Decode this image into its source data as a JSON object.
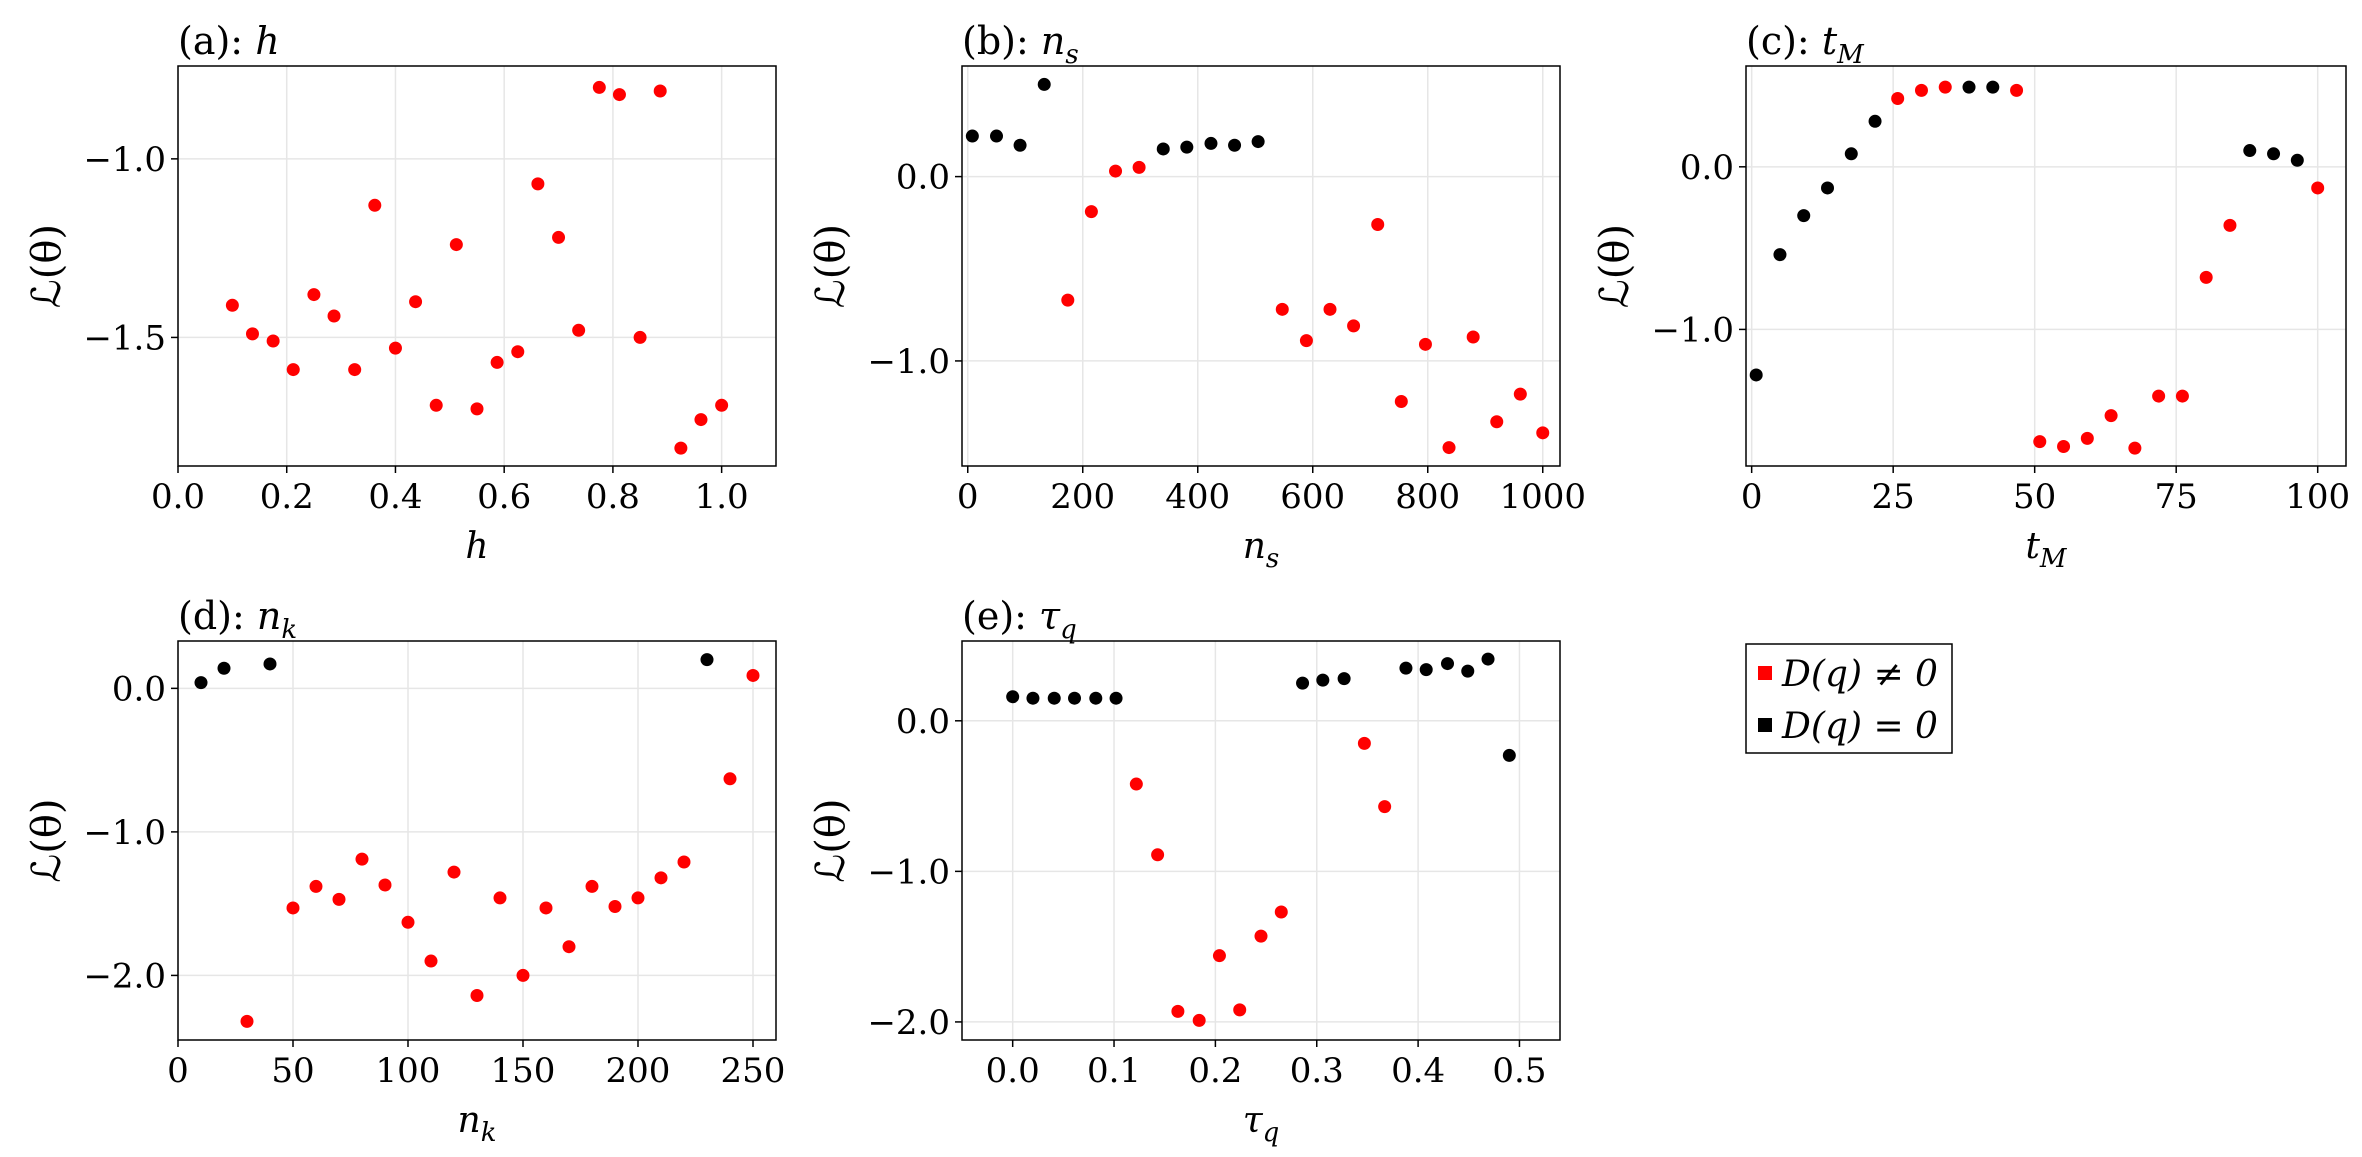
{
  "colors": {
    "nonzero": "#ff0000",
    "zero": "#000000",
    "grid": "#e6e6e6",
    "frame": "#000000"
  },
  "legend": {
    "placement": "right of bottom row",
    "entries": [
      {
        "label": "D(q) ≠ 0",
        "color": "#ff0000"
      },
      {
        "label": "D(q) = 0",
        "color": "#000000"
      }
    ]
  },
  "chart_data": [
    {
      "type": "scatter",
      "title": "(a): h",
      "xlabel": "h",
      "ylabel": "ℒ(θ)",
      "xlim": [
        0.0,
        1.1
      ],
      "ylim": [
        -1.86,
        -0.74
      ],
      "xticks": [
        0.0,
        0.2,
        0.4,
        0.6,
        0.8,
        1.0
      ],
      "xtick_labels": [
        "0.0",
        "0.2",
        "0.4",
        "0.6",
        "0.8",
        "1.0"
      ],
      "yticks": [
        -1.0,
        -1.5
      ],
      "ytick_labels": [
        "−1.0",
        "−1.5"
      ],
      "grid": true,
      "series": [
        {
          "name": "D(q) ≠ 0",
          "color": "#ff0000",
          "points": [
            [
              0.1,
              -1.41
            ],
            [
              0.137,
              -1.49
            ],
            [
              0.175,
              -1.51
            ],
            [
              0.212,
              -1.59
            ],
            [
              0.25,
              -1.38
            ],
            [
              0.287,
              -1.44
            ],
            [
              0.325,
              -1.59
            ],
            [
              0.362,
              -1.13
            ],
            [
              0.4,
              -1.53
            ],
            [
              0.437,
              -1.4
            ],
            [
              0.475,
              -1.69
            ],
            [
              0.512,
              -1.24
            ],
            [
              0.55,
              -1.7
            ],
            [
              0.587,
              -1.57
            ],
            [
              0.625,
              -1.54
            ],
            [
              0.662,
              -1.07
            ],
            [
              0.7,
              -1.22
            ],
            [
              0.737,
              -1.48
            ],
            [
              0.775,
              -0.8
            ],
            [
              0.812,
              -0.82
            ],
            [
              0.85,
              -1.5
            ],
            [
              0.887,
              -0.81
            ],
            [
              0.925,
              -1.81
            ],
            [
              0.962,
              -1.73
            ],
            [
              1.0,
              -1.69
            ]
          ]
        }
      ]
    },
    {
      "type": "scatter",
      "title": "(b): n_s",
      "xlabel": "n_s",
      "ylabel": "ℒ(θ)",
      "xlim": [
        -10,
        1030
      ],
      "ylim": [
        -1.57,
        0.6
      ],
      "xticks": [
        0,
        200,
        400,
        600,
        800,
        1000
      ],
      "xtick_labels": [
        "0",
        "200",
        "400",
        "600",
        "800",
        "1000"
      ],
      "yticks": [
        0.0,
        -1.0
      ],
      "ytick_labels": [
        "0.0",
        "−1.0"
      ],
      "grid": true,
      "series": [
        {
          "name": "D(q) ≠ 0",
          "color": "#ff0000",
          "points": [
            [
              174,
              -0.67
            ],
            [
              215,
              -0.19
            ],
            [
              257,
              0.03
            ],
            [
              298,
              0.05
            ],
            [
              547,
              -0.72
            ],
            [
              589,
              -0.89
            ],
            [
              630,
              -0.72
            ],
            [
              671,
              -0.81
            ],
            [
              713,
              -0.26
            ],
            [
              754,
              -1.22
            ],
            [
              796,
              -0.91
            ],
            [
              837,
              -1.47
            ],
            [
              879,
              -0.87
            ],
            [
              920,
              -1.33
            ],
            [
              961,
              -1.18
            ],
            [
              1000,
              -1.39
            ]
          ]
        },
        {
          "name": "D(q) = 0",
          "color": "#000000",
          "points": [
            [
              8,
              0.22
            ],
            [
              50,
              0.22
            ],
            [
              91,
              0.17
            ],
            [
              133,
              0.5
            ],
            [
              340,
              0.15
            ],
            [
              381,
              0.16
            ],
            [
              423,
              0.18
            ],
            [
              464,
              0.17
            ],
            [
              505,
              0.19
            ]
          ]
        }
      ]
    },
    {
      "type": "scatter",
      "title": "(c): t_M",
      "xlabel": "t_M",
      "ylabel": "ℒ(θ)",
      "xlim": [
        -1,
        105
      ],
      "ylim": [
        -1.84,
        0.62
      ],
      "xticks": [
        0,
        25,
        50,
        75,
        100
      ],
      "xtick_labels": [
        "0",
        "25",
        "50",
        "75",
        "100"
      ],
      "yticks": [
        0.0,
        -1.0
      ],
      "ytick_labels": [
        "0.0",
        "−1.0"
      ],
      "grid": true,
      "series": [
        {
          "name": "D(q) ≠ 0",
          "color": "#ff0000",
          "points": [
            [
              25.8,
              0.42
            ],
            [
              30,
              0.47
            ],
            [
              34.2,
              0.49
            ],
            [
              46.8,
              0.47
            ],
            [
              50.9,
              -1.69
            ],
            [
              55.1,
              -1.72
            ],
            [
              59.3,
              -1.67
            ],
            [
              63.5,
              -1.53
            ],
            [
              67.7,
              -1.73
            ],
            [
              71.9,
              -1.41
            ],
            [
              76.1,
              -1.41
            ],
            [
              80.3,
              -0.68
            ],
            [
              84.5,
              -0.36
            ],
            [
              100,
              -0.13
            ]
          ]
        },
        {
          "name": "D(q) = 0",
          "color": "#000000",
          "points": [
            [
              0.8,
              -1.28
            ],
            [
              5,
              -0.54
            ],
            [
              9.2,
              -0.3
            ],
            [
              13.4,
              -0.13
            ],
            [
              17.6,
              0.08
            ],
            [
              21.8,
              0.28
            ],
            [
              38.4,
              0.49
            ],
            [
              42.6,
              0.49
            ],
            [
              88,
              0.1
            ],
            [
              92.2,
              0.08
            ],
            [
              96.4,
              0.04
            ]
          ]
        }
      ]
    },
    {
      "type": "scatter",
      "title": "(d): n_k",
      "xlabel": "n_k",
      "ylabel": "ℒ(θ)",
      "xlim": [
        0,
        260
      ],
      "ylim": [
        -2.45,
        0.33
      ],
      "xticks": [
        0,
        50,
        100,
        150,
        200,
        250
      ],
      "xtick_labels": [
        "0",
        "50",
        "100",
        "150",
        "200",
        "250"
      ],
      "yticks": [
        0.0,
        -1.0,
        -2.0
      ],
      "ytick_labels": [
        "0.0",
        "−1.0",
        "−2.0"
      ],
      "grid": true,
      "series": [
        {
          "name": "D(q) ≠ 0",
          "color": "#ff0000",
          "points": [
            [
              30,
              -2.32
            ],
            [
              50,
              -1.53
            ],
            [
              60,
              -1.38
            ],
            [
              70,
              -1.47
            ],
            [
              80,
              -1.19
            ],
            [
              90,
              -1.37
            ],
            [
              100,
              -1.63
            ],
            [
              110,
              -1.9
            ],
            [
              120,
              -1.28
            ],
            [
              130,
              -2.14
            ],
            [
              140,
              -1.46
            ],
            [
              150,
              -2.0
            ],
            [
              160,
              -1.53
            ],
            [
              170,
              -1.8
            ],
            [
              180,
              -1.38
            ],
            [
              190,
              -1.52
            ],
            [
              200,
              -1.46
            ],
            [
              210,
              -1.32
            ],
            [
              220,
              -1.21
            ],
            [
              240,
              -0.63
            ],
            [
              250,
              0.09
            ]
          ]
        },
        {
          "name": "D(q) = 0",
          "color": "#000000",
          "points": [
            [
              10,
              0.04
            ],
            [
              20,
              0.14
            ],
            [
              40,
              0.17
            ],
            [
              230,
              0.2
            ]
          ]
        }
      ]
    },
    {
      "type": "scatter",
      "title": "(e): τ_q",
      "xlabel": "τ_q",
      "ylabel": "ℒ(θ)",
      "xlim": [
        -0.05,
        0.54
      ],
      "ylim": [
        -2.12,
        0.53
      ],
      "xticks": [
        0.0,
        0.1,
        0.2,
        0.3,
        0.4,
        0.5
      ],
      "xtick_labels": [
        "0.0",
        "0.1",
        "0.2",
        "0.3",
        "0.4",
        "0.5"
      ],
      "yticks": [
        0.0,
        -1.0,
        -2.0
      ],
      "ytick_labels": [
        "0.0",
        "−1.0",
        "−2.0"
      ],
      "grid": true,
      "series": [
        {
          "name": "D(q) ≠ 0",
          "color": "#ff0000",
          "points": [
            [
              0.122,
              -0.42
            ],
            [
              0.143,
              -0.89
            ],
            [
              0.163,
              -1.93
            ],
            [
              0.184,
              -1.99
            ],
            [
              0.204,
              -1.56
            ],
            [
              0.224,
              -1.92
            ],
            [
              0.245,
              -1.43
            ],
            [
              0.265,
              -1.27
            ],
            [
              0.347,
              -0.15
            ],
            [
              0.367,
              -0.57
            ]
          ]
        },
        {
          "name": "D(q) = 0",
          "color": "#000000",
          "points": [
            [
              0.0,
              0.16
            ],
            [
              0.02,
              0.15
            ],
            [
              0.041,
              0.15
            ],
            [
              0.061,
              0.15
            ],
            [
              0.082,
              0.15
            ],
            [
              0.102,
              0.15
            ],
            [
              0.286,
              0.25
            ],
            [
              0.306,
              0.27
            ],
            [
              0.327,
              0.28
            ],
            [
              0.388,
              0.35
            ],
            [
              0.408,
              0.34
            ],
            [
              0.429,
              0.38
            ],
            [
              0.449,
              0.33
            ],
            [
              0.469,
              0.41
            ],
            [
              0.49,
              -0.23
            ]
          ]
        }
      ]
    }
  ]
}
